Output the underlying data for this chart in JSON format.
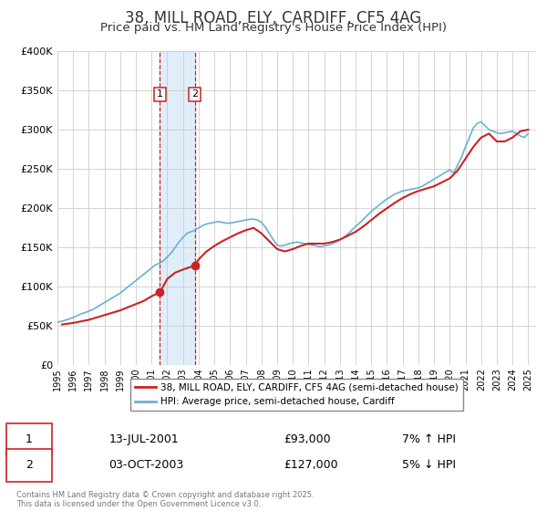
{
  "title": "38, MILL ROAD, ELY, CARDIFF, CF5 4AG",
  "subtitle": "Price paid vs. HM Land Registry's House Price Index (HPI)",
  "title_fontsize": 12,
  "subtitle_fontsize": 9.5,
  "legend_line1": "38, MILL ROAD, ELY, CARDIFF, CF5 4AG (semi-detached house)",
  "legend_line2": "HPI: Average price, semi-detached house, Cardiff",
  "hpi_color": "#6ab0d4",
  "price_color": "#cc2222",
  "annotation_color": "#cc2222",
  "footer": "Contains HM Land Registry data © Crown copyright and database right 2025.\nThis data is licensed under the Open Government Licence v3.0.",
  "sale1_date": 2001.53,
  "sale1_price": 93000,
  "sale1_label": "13-JUL-2001",
  "sale1_amount": "£93,000",
  "sale1_note": "7% ↑ HPI",
  "sale2_date": 2003.75,
  "sale2_price": 127000,
  "sale2_label": "03-OCT-2003",
  "sale2_amount": "£127,000",
  "sale2_note": "5% ↓ HPI",
  "shade_x1": 2001.53,
  "shade_x2": 2003.75,
  "ylim_min": 0,
  "ylim_max": 400000,
  "xlim_min": 1995,
  "xlim_max": 2025.5,
  "hpi_x": [
    1995,
    1995.25,
    1995.5,
    1995.75,
    1996,
    1996.25,
    1996.5,
    1996.75,
    1997,
    1997.25,
    1997.5,
    1997.75,
    1998,
    1998.25,
    1998.5,
    1998.75,
    1999,
    1999.25,
    1999.5,
    1999.75,
    2000,
    2000.25,
    2000.5,
    2000.75,
    2001,
    2001.25,
    2001.5,
    2001.75,
    2002,
    2002.25,
    2002.5,
    2002.75,
    2003,
    2003.25,
    2003.5,
    2003.75,
    2004,
    2004.25,
    2004.5,
    2004.75,
    2005,
    2005.25,
    2005.5,
    2005.75,
    2006,
    2006.25,
    2006.5,
    2006.75,
    2007,
    2007.25,
    2007.5,
    2007.75,
    2008,
    2008.25,
    2008.5,
    2008.75,
    2009,
    2009.25,
    2009.5,
    2009.75,
    2010,
    2010.25,
    2010.5,
    2010.75,
    2011,
    2011.25,
    2011.5,
    2011.75,
    2012,
    2012.25,
    2012.5,
    2012.75,
    2013,
    2013.25,
    2013.5,
    2013.75,
    2014,
    2014.25,
    2014.5,
    2014.75,
    2015,
    2015.25,
    2015.5,
    2015.75,
    2016,
    2016.25,
    2016.5,
    2016.75,
    2017,
    2017.25,
    2017.5,
    2017.75,
    2018,
    2018.25,
    2018.5,
    2018.75,
    2019,
    2019.25,
    2019.5,
    2019.75,
    2020,
    2020.25,
    2020.5,
    2020.75,
    2021,
    2021.25,
    2021.5,
    2021.75,
    2022,
    2022.25,
    2022.5,
    2022.75,
    2023,
    2023.25,
    2023.5,
    2023.75,
    2024,
    2024.25,
    2024.5,
    2024.75,
    2025
  ],
  "hpi_y": [
    55000,
    56000,
    57500,
    59000,
    61000,
    63000,
    65500,
    67000,
    69000,
    71000,
    74000,
    77000,
    80000,
    83000,
    86000,
    89000,
    92000,
    96000,
    100000,
    104000,
    108000,
    112000,
    116000,
    120000,
    124000,
    128000,
    130000,
    133000,
    138000,
    143000,
    150000,
    157000,
    163000,
    168000,
    170000,
    172000,
    175000,
    178000,
    180000,
    181000,
    182000,
    183000,
    182000,
    181000,
    181000,
    182000,
    183000,
    184000,
    185000,
    186000,
    186000,
    185000,
    182000,
    176000,
    168000,
    160000,
    153000,
    152000,
    153000,
    155000,
    156000,
    157000,
    156000,
    155000,
    154000,
    153000,
    152000,
    151000,
    152000,
    153000,
    155000,
    157000,
    160000,
    163000,
    167000,
    172000,
    177000,
    181000,
    186000,
    191000,
    196000,
    200000,
    204000,
    208000,
    212000,
    215000,
    218000,
    220000,
    222000,
    223000,
    224000,
    225000,
    226000,
    228000,
    231000,
    234000,
    237000,
    240000,
    243000,
    246000,
    249000,
    245000,
    255000,
    265000,
    278000,
    290000,
    302000,
    308000,
    310000,
    305000,
    300000,
    298000,
    296000,
    295000,
    296000,
    297000,
    298000,
    295000,
    292000,
    290000,
    295000
  ],
  "price_x": [
    1995.3,
    1996,
    1996.5,
    1997,
    1997.5,
    1998,
    1998.5,
    1999,
    1999.5,
    2000,
    2000.5,
    2001,
    2001.53,
    2002,
    2002.5,
    2003,
    2003.75,
    2004,
    2004.5,
    2005,
    2005.5,
    2006,
    2006.5,
    2007,
    2007.5,
    2008,
    2008.5,
    2009,
    2009.5,
    2010,
    2010.5,
    2011,
    2011.5,
    2012,
    2012.5,
    2013,
    2013.5,
    2014,
    2014.5,
    2015,
    2015.5,
    2016,
    2016.5,
    2017,
    2017.5,
    2018,
    2018.5,
    2019,
    2019.5,
    2020,
    2020.5,
    2021,
    2021.5,
    2022,
    2022.5,
    2023,
    2023.5,
    2024,
    2024.5,
    2025
  ],
  "price_y": [
    52000,
    54000,
    56000,
    58000,
    61000,
    64000,
    67000,
    70000,
    74000,
    78000,
    82000,
    88000,
    93000,
    110000,
    118000,
    122000,
    127000,
    135000,
    145000,
    152000,
    158000,
    163000,
    168000,
    172000,
    175000,
    168000,
    158000,
    148000,
    145000,
    148000,
    152000,
    155000,
    155000,
    155000,
    157000,
    160000,
    165000,
    170000,
    177000,
    185000,
    193000,
    200000,
    207000,
    213000,
    218000,
    222000,
    225000,
    228000,
    233000,
    238000,
    248000,
    263000,
    278000,
    290000,
    295000,
    285000,
    285000,
    290000,
    298000,
    300000
  ]
}
